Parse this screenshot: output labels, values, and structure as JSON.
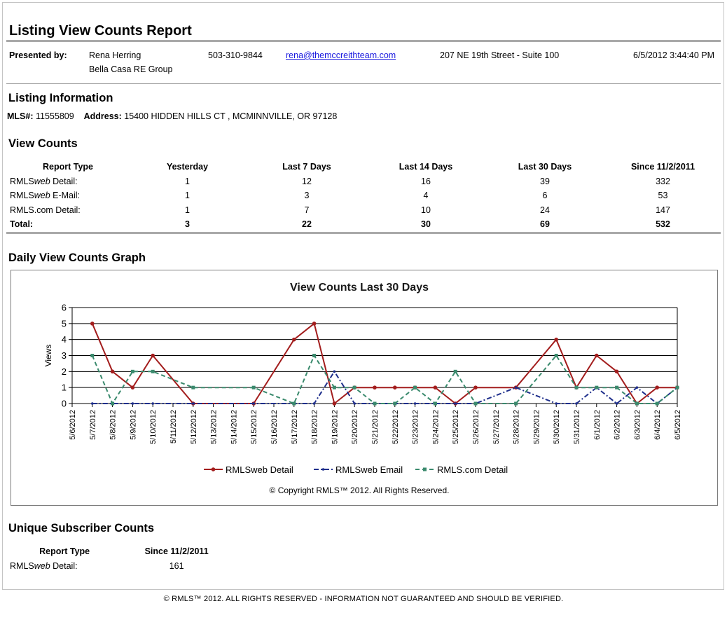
{
  "report": {
    "title": "Listing View Counts Report",
    "generated": "6/5/2012 3:44:40 PM"
  },
  "presenter": {
    "label": "Presented by:",
    "name": "Rena Herring",
    "company": "Bella Casa RE Group",
    "phone": "503-310-9844",
    "email": "rena@themccreithteam.com",
    "address": "207 NE 19th Street - Suite 100"
  },
  "listing": {
    "heading": "Listing Information",
    "mls_label": "MLS#:",
    "mls": "11555809",
    "address_label": "Address:",
    "address": "15400 HIDDEN HILLS CT , MCMINNVILLE, OR 97128"
  },
  "view_counts": {
    "heading": "View Counts",
    "columns": [
      "Report Type",
      "Yesterday",
      "Last 7 Days",
      "Last 14 Days",
      "Last 30 Days",
      "Since 11/2/2011"
    ],
    "rows": [
      {
        "type_prefix": "RMLS",
        "type_em": "web",
        "type_suffix": " Detail:",
        "values": [
          "1",
          "12",
          "16",
          "39",
          "332"
        ]
      },
      {
        "type_prefix": "RMLS",
        "type_em": "web",
        "type_suffix": " E-Mail:",
        "values": [
          "1",
          "3",
          "4",
          "6",
          "53"
        ]
      },
      {
        "type_prefix": "RMLS.com Detail:",
        "type_em": "",
        "type_suffix": "",
        "values": [
          "1",
          "7",
          "10",
          "24",
          "147"
        ]
      }
    ],
    "total_label": "Total:",
    "totals": [
      "3",
      "22",
      "30",
      "69",
      "532"
    ]
  },
  "graph": {
    "heading": "Daily View Counts Graph",
    "copyright": "© Copyright RMLS™ 2012.  All Rights Reserved."
  },
  "chart_data": {
    "type": "line",
    "title": "View Counts Last 30 Days",
    "ylabel": "Views",
    "xlabel": "",
    "ylim": [
      0,
      6
    ],
    "yticks": [
      0,
      1,
      2,
      3,
      4,
      5,
      6
    ],
    "grid": "horizontal",
    "legend": "bottom",
    "x": [
      "5/6/2012",
      "5/7/2012",
      "5/8/2012",
      "5/9/2012",
      "5/10/2012",
      "5/11/2012",
      "5/12/2012",
      "5/13/2012",
      "5/14/2012",
      "5/15/2012",
      "5/16/2012",
      "5/17/2012",
      "5/18/2012",
      "5/19/2012",
      "5/20/2012",
      "5/21/2012",
      "5/22/2012",
      "5/23/2012",
      "5/24/2012",
      "5/25/2012",
      "5/26/2012",
      "5/27/2012",
      "5/28/2012",
      "5/29/2012",
      "5/30/2012",
      "5/31/2012",
      "6/1/2012",
      "6/2/2012",
      "6/3/2012",
      "6/4/2012",
      "6/5/2012"
    ],
    "series": [
      {
        "name": "RMLSweb Detail",
        "color": "#a31d1d",
        "dash": "",
        "marker": "circle",
        "points": [
          [
            1,
            5
          ],
          [
            2,
            2
          ],
          [
            3,
            1
          ],
          [
            4,
            3
          ],
          [
            6,
            0
          ],
          [
            9,
            0
          ],
          [
            11,
            4
          ],
          [
            12,
            5
          ],
          [
            13,
            0
          ],
          [
            14,
            1
          ],
          [
            15,
            1
          ],
          [
            16,
            1
          ],
          [
            17,
            1
          ],
          [
            18,
            1
          ],
          [
            19,
            0
          ],
          [
            20,
            1
          ],
          [
            22,
            1
          ],
          [
            24,
            4
          ],
          [
            25,
            1
          ],
          [
            26,
            3
          ],
          [
            27,
            2
          ],
          [
            28,
            0
          ],
          [
            29,
            1
          ],
          [
            30,
            1
          ]
        ]
      },
      {
        "name": "RMLSweb Email",
        "color": "#1f2f8c",
        "dash": "7,3,2,3",
        "marker": "dot",
        "points": [
          [
            1,
            0
          ],
          [
            2,
            0
          ],
          [
            3,
            0
          ],
          [
            4,
            0
          ],
          [
            6,
            0
          ],
          [
            9,
            0
          ],
          [
            11,
            0
          ],
          [
            12,
            0
          ],
          [
            13,
            2
          ],
          [
            14,
            0
          ],
          [
            15,
            0
          ],
          [
            16,
            0
          ],
          [
            17,
            0
          ],
          [
            18,
            0
          ],
          [
            19,
            0
          ],
          [
            20,
            0
          ],
          [
            22,
            1
          ],
          [
            24,
            0
          ],
          [
            25,
            0
          ],
          [
            26,
            1
          ],
          [
            27,
            0
          ],
          [
            28,
            1
          ],
          [
            29,
            0
          ],
          [
            30,
            1
          ]
        ]
      },
      {
        "name": "RMLS.com Detail",
        "color": "#3a8a6d",
        "dash": "6,4",
        "marker": "square",
        "points": [
          [
            1,
            3
          ],
          [
            2,
            0
          ],
          [
            3,
            2
          ],
          [
            4,
            2
          ],
          [
            6,
            1
          ],
          [
            9,
            1
          ],
          [
            11,
            0
          ],
          [
            12,
            3
          ],
          [
            13,
            1
          ],
          [
            14,
            1
          ],
          [
            15,
            0
          ],
          [
            16,
            0
          ],
          [
            17,
            1
          ],
          [
            18,
            0
          ],
          [
            19,
            2
          ],
          [
            20,
            0
          ],
          [
            22,
            0
          ],
          [
            24,
            3
          ],
          [
            25,
            1
          ],
          [
            26,
            1
          ],
          [
            27,
            1
          ],
          [
            28,
            0
          ],
          [
            29,
            0
          ],
          [
            30,
            1
          ]
        ]
      }
    ]
  },
  "unique": {
    "heading": "Unique Subscriber Counts",
    "columns": [
      "Report Type",
      "Since 11/2/2011"
    ],
    "rows": [
      {
        "type_prefix": "RMLS",
        "type_em": "web",
        "type_suffix": " Detail:",
        "value": "161"
      }
    ]
  },
  "footer": "© RMLS™ 2012. ALL RIGHTS RESERVED - INFORMATION NOT GUARANTEED AND SHOULD BE VERIFIED."
}
